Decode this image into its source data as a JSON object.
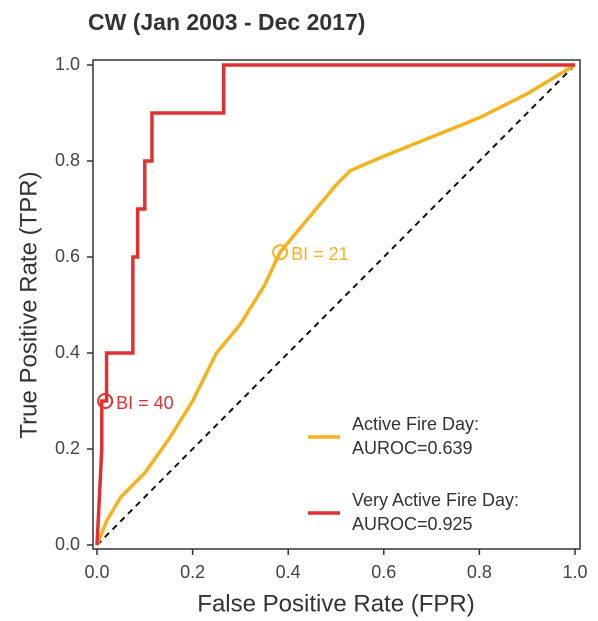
{
  "chart_data": {
    "type": "line",
    "title": "CW (Jan 2003 - Dec 2017)",
    "xlabel": "False Positive Rate (FPR)",
    "ylabel": "True Positive Rate (TPR)",
    "xlim": [
      0,
      1
    ],
    "ylim": [
      0,
      1
    ],
    "xticks": [
      {
        "value": 0,
        "label": "0.0"
      },
      0.2,
      0.4,
      0.6,
      0.8,
      {
        "value": 1,
        "label": "1.0"
      }
    ],
    "yticks": [
      {
        "value": 0,
        "label": "0.0"
      },
      0.2,
      0.4,
      0.6,
      0.8,
      {
        "value": 1,
        "label": "1.0"
      }
    ],
    "diagonal": true,
    "series": [
      {
        "name": "Active Fire Day:",
        "auroc": "AUROC=0.639",
        "color": "#f5b21c",
        "x": [
          0,
          0.02,
          0.05,
          0.1,
          0.15,
          0.2,
          0.25,
          0.3,
          0.35,
          0.383,
          0.45,
          0.5,
          0.53,
          0.6,
          0.7,
          0.8,
          0.9,
          1
        ],
        "values": [
          0,
          0.05,
          0.1,
          0.15,
          0.22,
          0.3,
          0.4,
          0.46,
          0.54,
          0.61,
          0.69,
          0.75,
          0.78,
          0.81,
          0.85,
          0.89,
          0.94,
          1
        ]
      },
      {
        "name": "Very Active Fire Day:",
        "auroc": "AUROC=0.925",
        "color": "#e0302f",
        "x": [
          0,
          0.005,
          0.01,
          0.01,
          0.02,
          0.02,
          0.075,
          0.075,
          0.085,
          0.085,
          0.1,
          0.1,
          0.115,
          0.115,
          0.265,
          0.265,
          1
        ],
        "values": [
          0,
          0.1,
          0.2,
          0.3,
          0.3,
          0.4,
          0.4,
          0.6,
          0.6,
          0.7,
          0.7,
          0.8,
          0.8,
          0.9,
          0.9,
          1,
          1
        ]
      }
    ],
    "annotations": [
      {
        "text": "BI = 21",
        "x": 0.383,
        "y": 0.61,
        "color": "#f5b21c"
      },
      {
        "text": "BI = 40",
        "x": 0.017,
        "y": 0.3,
        "color": "#e0302f"
      }
    ]
  }
}
